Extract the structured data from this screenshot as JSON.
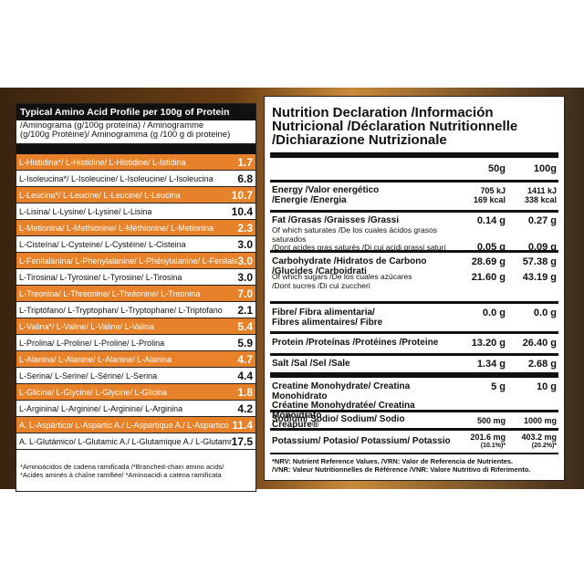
{
  "amino": {
    "title": "Typical Amino Acid Profile per 100g of Protein",
    "subtitle_line1": "/Aminograma (g/100g proteína) / Aminogramme",
    "subtitle_line2": "(g/100g Protéine)/ Aminogramma (g /100 g di proteine)",
    "rows": [
      {
        "name": "L-Histidina*/ L-Histidine/ L-Histidine/ L-Istidina",
        "value": "1.7"
      },
      {
        "name": "L-Isoleucina*/ L-Isoleucine/ L-Isoleucine/ L-Isoleucina",
        "value": "6.8"
      },
      {
        "name": "L-Leucina*/ L-Leucine/ L-Leucine/ L-Leucina",
        "value": "10.7"
      },
      {
        "name": "L-Lisina/ L-Lysine/ L-Lysine/ L-Lisina",
        "value": "10.4"
      },
      {
        "name": "L-Metionina/ L-Methionine/ L-Méthionine/ L-Metionina",
        "value": "2.3"
      },
      {
        "name": "L-Cisteína/ L-Cysteine/ L-Cystéine/ L-Cisteina",
        "value": "3.0"
      },
      {
        "name": "L-Fenilalanina/ L-Phenylalanine/ L-Phénylalanine/ L-Fenilalanina",
        "value": "3.0"
      },
      {
        "name": "L-Tirosina/ L-Tyrosine/ L-Tyrosine/ L-Tirosina",
        "value": "3.0"
      },
      {
        "name": "L-Treonina/ L-Threonine/ L-Thréonine/ L-Treonina",
        "value": "7.0"
      },
      {
        "name": "L-Triptófano/ L-Tryptophan/ L-Tryptophane/ L-Triptofano",
        "value": "2.1"
      },
      {
        "name": "L-Valina*/ L-Valine/ L-Valine/ L-Valina",
        "value": "5.4"
      },
      {
        "name": "L-Prolina/ L-Proline/ L-Proline/ L-Prolina",
        "value": "5.9"
      },
      {
        "name": "L-Alanina/ L-Alanine/ L-Alanine/ L-Alanina",
        "value": "4.7"
      },
      {
        "name": "L-Serina/ L-Serine/ L-Sérine/ L-Serina",
        "value": "4.4"
      },
      {
        "name": "L-Glicina/ L-Glycine/ L-Glycine/ L-Glicina",
        "value": "1.8"
      },
      {
        "name": "L-Arginina/ L-Arginine/ L-Arginine/ L-Arginina",
        "value": "4.2"
      },
      {
        "name": "A. L-Aspártico/ L-Aspartic A./ L-Aspartique A./ L-Aspartico",
        "value": "11.4"
      },
      {
        "name": "A. L-Glutámico/ L-Glutamic A./ L-Glutamique A./ L-Glutammico",
        "value": "17.5"
      }
    ],
    "footnote_line1": "*Aminoácidos de cadena ramificada /*Branched-chain amino acids/",
    "footnote_line2": "*Acides aminés à chaîne ramifiée/ *Aminoacidi a catena ramificata"
  },
  "nutrition": {
    "title_line1": "Nutrition Declaration /Información",
    "title_line2": "Nutricional /Déclaration Nutritionnelle",
    "title_line3": "/Dichiarazione Nutrizionale",
    "col1": "50g",
    "col2": "100g",
    "energy": {
      "label1": "Energy /Valor energético",
      "label2": "/Energie /Energia",
      "v1a": "705 kJ",
      "v1b": "169 kcal",
      "v2a": "1411 kJ",
      "v2b": "338 kcal"
    },
    "fat": {
      "label": "Fat /Grasas /Graisses /Grassi",
      "v1": "0.14 g",
      "v2": "0.27 g",
      "sub1": "Of which saturates /De los cuales ácidos grasos saturados",
      "sub2": "/Dont acides gras saturés /Di cui acidi grassi saturi",
      "sv1": "0.05 g",
      "sv2": "0.09 g"
    },
    "carb": {
      "label1": "Carbohydrate /Hidratos de Carbono",
      "label2": "/Glucides /Carboidrati",
      "v1": "28.69 g",
      "v2": "57.38 g",
      "sub1": "Of which sugars /De los cuales azúcares",
      "sub2": "/Dont sucres /Di cui zuccheri",
      "sv1": "21.60 g",
      "sv2": "43.19 g"
    },
    "fibre": {
      "label1": "Fibre/ Fibra alimentaria/",
      "label2": "Fibres alimentaires/ Fibre",
      "v1": "0.0 g",
      "v2": "0.0 g"
    },
    "protein": {
      "label": "Protein /Proteínas /Protéines /Proteine",
      "v1": "13.20 g",
      "v2": "26.40 g"
    },
    "salt": {
      "label": "Salt /Sal /Sel /Sale",
      "v1": "1.34 g",
      "v2": "2.68 g"
    },
    "creatine": {
      "label1": "Creatine Monohydrate/ Creatina Monohidrato",
      "label2": "Créatine Monohydratée/ Creatina Monoidrato",
      "label3": "Creapure®",
      "v1": "5 g",
      "v2": "10 g"
    },
    "sodium": {
      "label": "Sodium/ Sodio/ Sodium/ Sodio",
      "v1": "500 mg",
      "v2": "1000 mg"
    },
    "potassium": {
      "label": "Potassium/ Potasio/ Potassium/ Potassio",
      "v1": "201.6 mg",
      "v1p": "(10.1%)*",
      "v2": "403.2 mg",
      "v2p": "(20.2%)*"
    },
    "footnote_line1": "*NRV: Nutrient Reference Values. /VRN: Valor de Referencia de Nutrientes.",
    "footnote_line2": "/VNR: Valeur Nutritionnelles de Référence /VNR: Valore Nutritivo di Riferimento."
  },
  "colors": {
    "accent": "#e8822a",
    "header": "#111111"
  }
}
